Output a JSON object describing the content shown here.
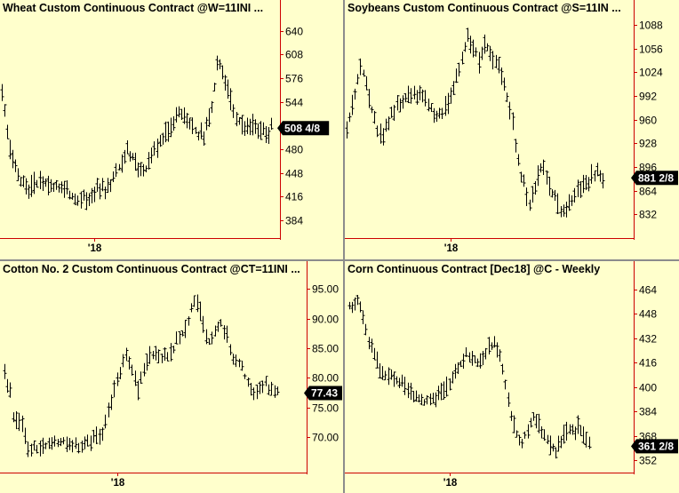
{
  "colors": {
    "background": "#ffffcc",
    "axis": "#cc0000",
    "bars": "#000000",
    "divider": "#8c8c8c",
    "badge_bg": "#000000",
    "badge_text": "#ffffff"
  },
  "chart_data": [
    {
      "type": "ohlc",
      "title": "Wheat Custom Continuous Contract  @W=11INI ...",
      "last_price_label": "508 4/8",
      "last_price_value": 508.5,
      "ylim": [
        360,
        660
      ],
      "yticks": [
        640,
        608,
        576,
        544,
        512,
        480,
        448,
        416,
        384
      ],
      "ytick_labels": [
        "640",
        "608",
        "576",
        "544",
        "512",
        "480",
        "448",
        "416",
        "384"
      ],
      "xtick_label": "'18",
      "xtick_index": 34,
      "bar_count": 100,
      "anchors": [
        [
          0,
          555
        ],
        [
          3,
          478
        ],
        [
          5,
          455
        ],
        [
          8,
          432
        ],
        [
          11,
          430
        ],
        [
          14,
          436
        ],
        [
          17,
          432
        ],
        [
          20,
          429
        ],
        [
          24,
          422
        ],
        [
          28,
          416
        ],
        [
          32,
          415
        ],
        [
          35,
          424
        ],
        [
          38,
          428
        ],
        [
          41,
          442
        ],
        [
          44,
          465
        ],
        [
          46,
          480
        ],
        [
          49,
          462
        ],
        [
          51,
          448
        ],
        [
          53,
          455
        ],
        [
          56,
          480
        ],
        [
          59,
          495
        ],
        [
          62,
          510
        ],
        [
          65,
          528
        ],
        [
          68,
          522
        ],
        [
          70,
          510
        ],
        [
          72,
          500
        ],
        [
          74,
          498
        ],
        [
          76,
          520
        ],
        [
          78,
          560
        ],
        [
          79,
          592
        ],
        [
          80,
          598
        ],
        [
          82,
          570
        ],
        [
          84,
          548
        ],
        [
          86,
          525
        ],
        [
          89,
          512
        ],
        [
          92,
          510
        ],
        [
          95,
          505
        ],
        [
          97,
          502
        ],
        [
          99,
          508
        ]
      ]
    },
    {
      "type": "ohlc",
      "title": "Soybeans Custom Continuous Contract  @S=11IN ...",
      "last_price_label": "881 2/8",
      "last_price_value": 881.25,
      "ylim": [
        800,
        1100
      ],
      "yticks": [
        1088,
        1056,
        1024,
        992,
        960,
        928,
        896,
        864,
        832
      ],
      "ytick_labels": [
        "1088",
        "1056",
        "1024",
        "992",
        "960",
        "928",
        "896",
        "864",
        "832"
      ],
      "xtick_label": "'18",
      "xtick_index": 37,
      "bar_count": 100,
      "anchors": [
        [
          0,
          948
        ],
        [
          3,
          992
        ],
        [
          5,
          1035
        ],
        [
          7,
          1010
        ],
        [
          9,
          975
        ],
        [
          11,
          948
        ],
        [
          13,
          940
        ],
        [
          15,
          958
        ],
        [
          17,
          975
        ],
        [
          20,
          985
        ],
        [
          23,
          992
        ],
        [
          26,
          998
        ],
        [
          29,
          980
        ],
        [
          32,
          965
        ],
        [
          35,
          975
        ],
        [
          37,
          992
        ],
        [
          39,
          1012
        ],
        [
          41,
          1040
        ],
        [
          43,
          1068
        ],
        [
          45,
          1055
        ],
        [
          47,
          1040
        ],
        [
          49,
          1062
        ],
        [
          51,
          1052
        ],
        [
          53,
          1038
        ],
        [
          55,
          1022
        ],
        [
          57,
          990
        ],
        [
          59,
          958
        ],
        [
          61,
          905
        ],
        [
          63,
          870
        ],
        [
          65,
          845
        ],
        [
          67,
          870
        ],
        [
          69,
          895
        ],
        [
          71,
          885
        ],
        [
          73,
          862
        ],
        [
          75,
          848
        ],
        [
          77,
          835
        ],
        [
          79,
          842
        ],
        [
          81,
          856
        ],
        [
          83,
          870
        ],
        [
          85,
          868
        ],
        [
          87,
          885
        ],
        [
          89,
          888
        ],
        [
          91,
          878
        ]
      ]
    },
    {
      "type": "ohlc",
      "title": "Cotton No. 2 Custom Continuous Contract  @CT=11INI ...",
      "last_price_label": "77.43",
      "last_price_value": 77.43,
      "ylim": [
        64,
        97
      ],
      "yticks": [
        95,
        90,
        85,
        80,
        75,
        70
      ],
      "ytick_labels": [
        "95.00",
        "90.00",
        "85.00",
        "80.00",
        "75.00",
        "70.00"
      ],
      "xtick_label": "'18",
      "xtick_index": 38,
      "bar_count": 100,
      "anchors": [
        [
          0,
          81
        ],
        [
          2,
          78
        ],
        [
          3,
          73
        ],
        [
          6,
          72
        ],
        [
          8,
          68
        ],
        [
          10,
          68
        ],
        [
          13,
          68.5
        ],
        [
          16,
          69
        ],
        [
          19,
          69.5
        ],
        [
          21,
          69
        ],
        [
          24,
          68.5
        ],
        [
          27,
          68.5
        ],
        [
          30,
          69.5
        ],
        [
          33,
          71
        ],
        [
          35,
          74
        ],
        [
          37,
          78
        ],
        [
          39,
          81
        ],
        [
          41,
          84
        ],
        [
          43,
          81
        ],
        [
          45,
          78
        ],
        [
          47,
          81
        ],
        [
          49,
          84
        ],
        [
          52,
          84
        ],
        [
          55,
          83
        ],
        [
          58,
          86
        ],
        [
          61,
          88
        ],
        [
          63,
          92
        ],
        [
          65,
          93
        ],
        [
          67,
          89
        ],
        [
          69,
          86
        ],
        [
          71,
          88
        ],
        [
          73,
          89
        ],
        [
          75,
          87
        ],
        [
          77,
          83
        ],
        [
          80,
          82
        ],
        [
          82,
          79
        ],
        [
          84,
          77
        ],
        [
          86,
          78
        ],
        [
          88,
          79
        ],
        [
          90,
          78
        ],
        [
          92,
          77.5
        ]
      ]
    },
    {
      "type": "ohlc",
      "title": "Corn Continuous Contract [Dec18]  @C - Weekly",
      "last_price_label": "361 2/8",
      "last_price_value": 361.25,
      "ylim": [
        344,
        472
      ],
      "yticks": [
        464,
        448,
        432,
        416,
        400,
        384,
        368,
        352
      ],
      "ytick_labels": [
        "464",
        "448",
        "432",
        "416",
        "400",
        "384",
        "368",
        "352"
      ],
      "xtick_label": "'18",
      "xtick_index": 36,
      "bar_count": 100,
      "anchors": [
        [
          0,
          452
        ],
        [
          3,
          458
        ],
        [
          5,
          445
        ],
        [
          7,
          432
        ],
        [
          9,
          420
        ],
        [
          12,
          410
        ],
        [
          15,
          406
        ],
        [
          18,
          402
        ],
        [
          21,
          398
        ],
        [
          24,
          394
        ],
        [
          27,
          391
        ],
        [
          30,
          391
        ],
        [
          33,
          396
        ],
        [
          36,
          402
        ],
        [
          39,
          412
        ],
        [
          42,
          422
        ],
        [
          44,
          418
        ],
        [
          46,
          416
        ],
        [
          48,
          420
        ],
        [
          50,
          426
        ],
        [
          52,
          428
        ],
        [
          54,
          422
        ],
        [
          56,
          400
        ],
        [
          58,
          382
        ],
        [
          60,
          368
        ],
        [
          62,
          364
        ],
        [
          64,
          372
        ],
        [
          66,
          382
        ],
        [
          68,
          376
        ],
        [
          70,
          368
        ],
        [
          72,
          362
        ],
        [
          74,
          358
        ],
        [
          76,
          366
        ],
        [
          78,
          372
        ],
        [
          80,
          370
        ],
        [
          82,
          375
        ],
        [
          84,
          368
        ],
        [
          86,
          362
        ]
      ]
    }
  ]
}
